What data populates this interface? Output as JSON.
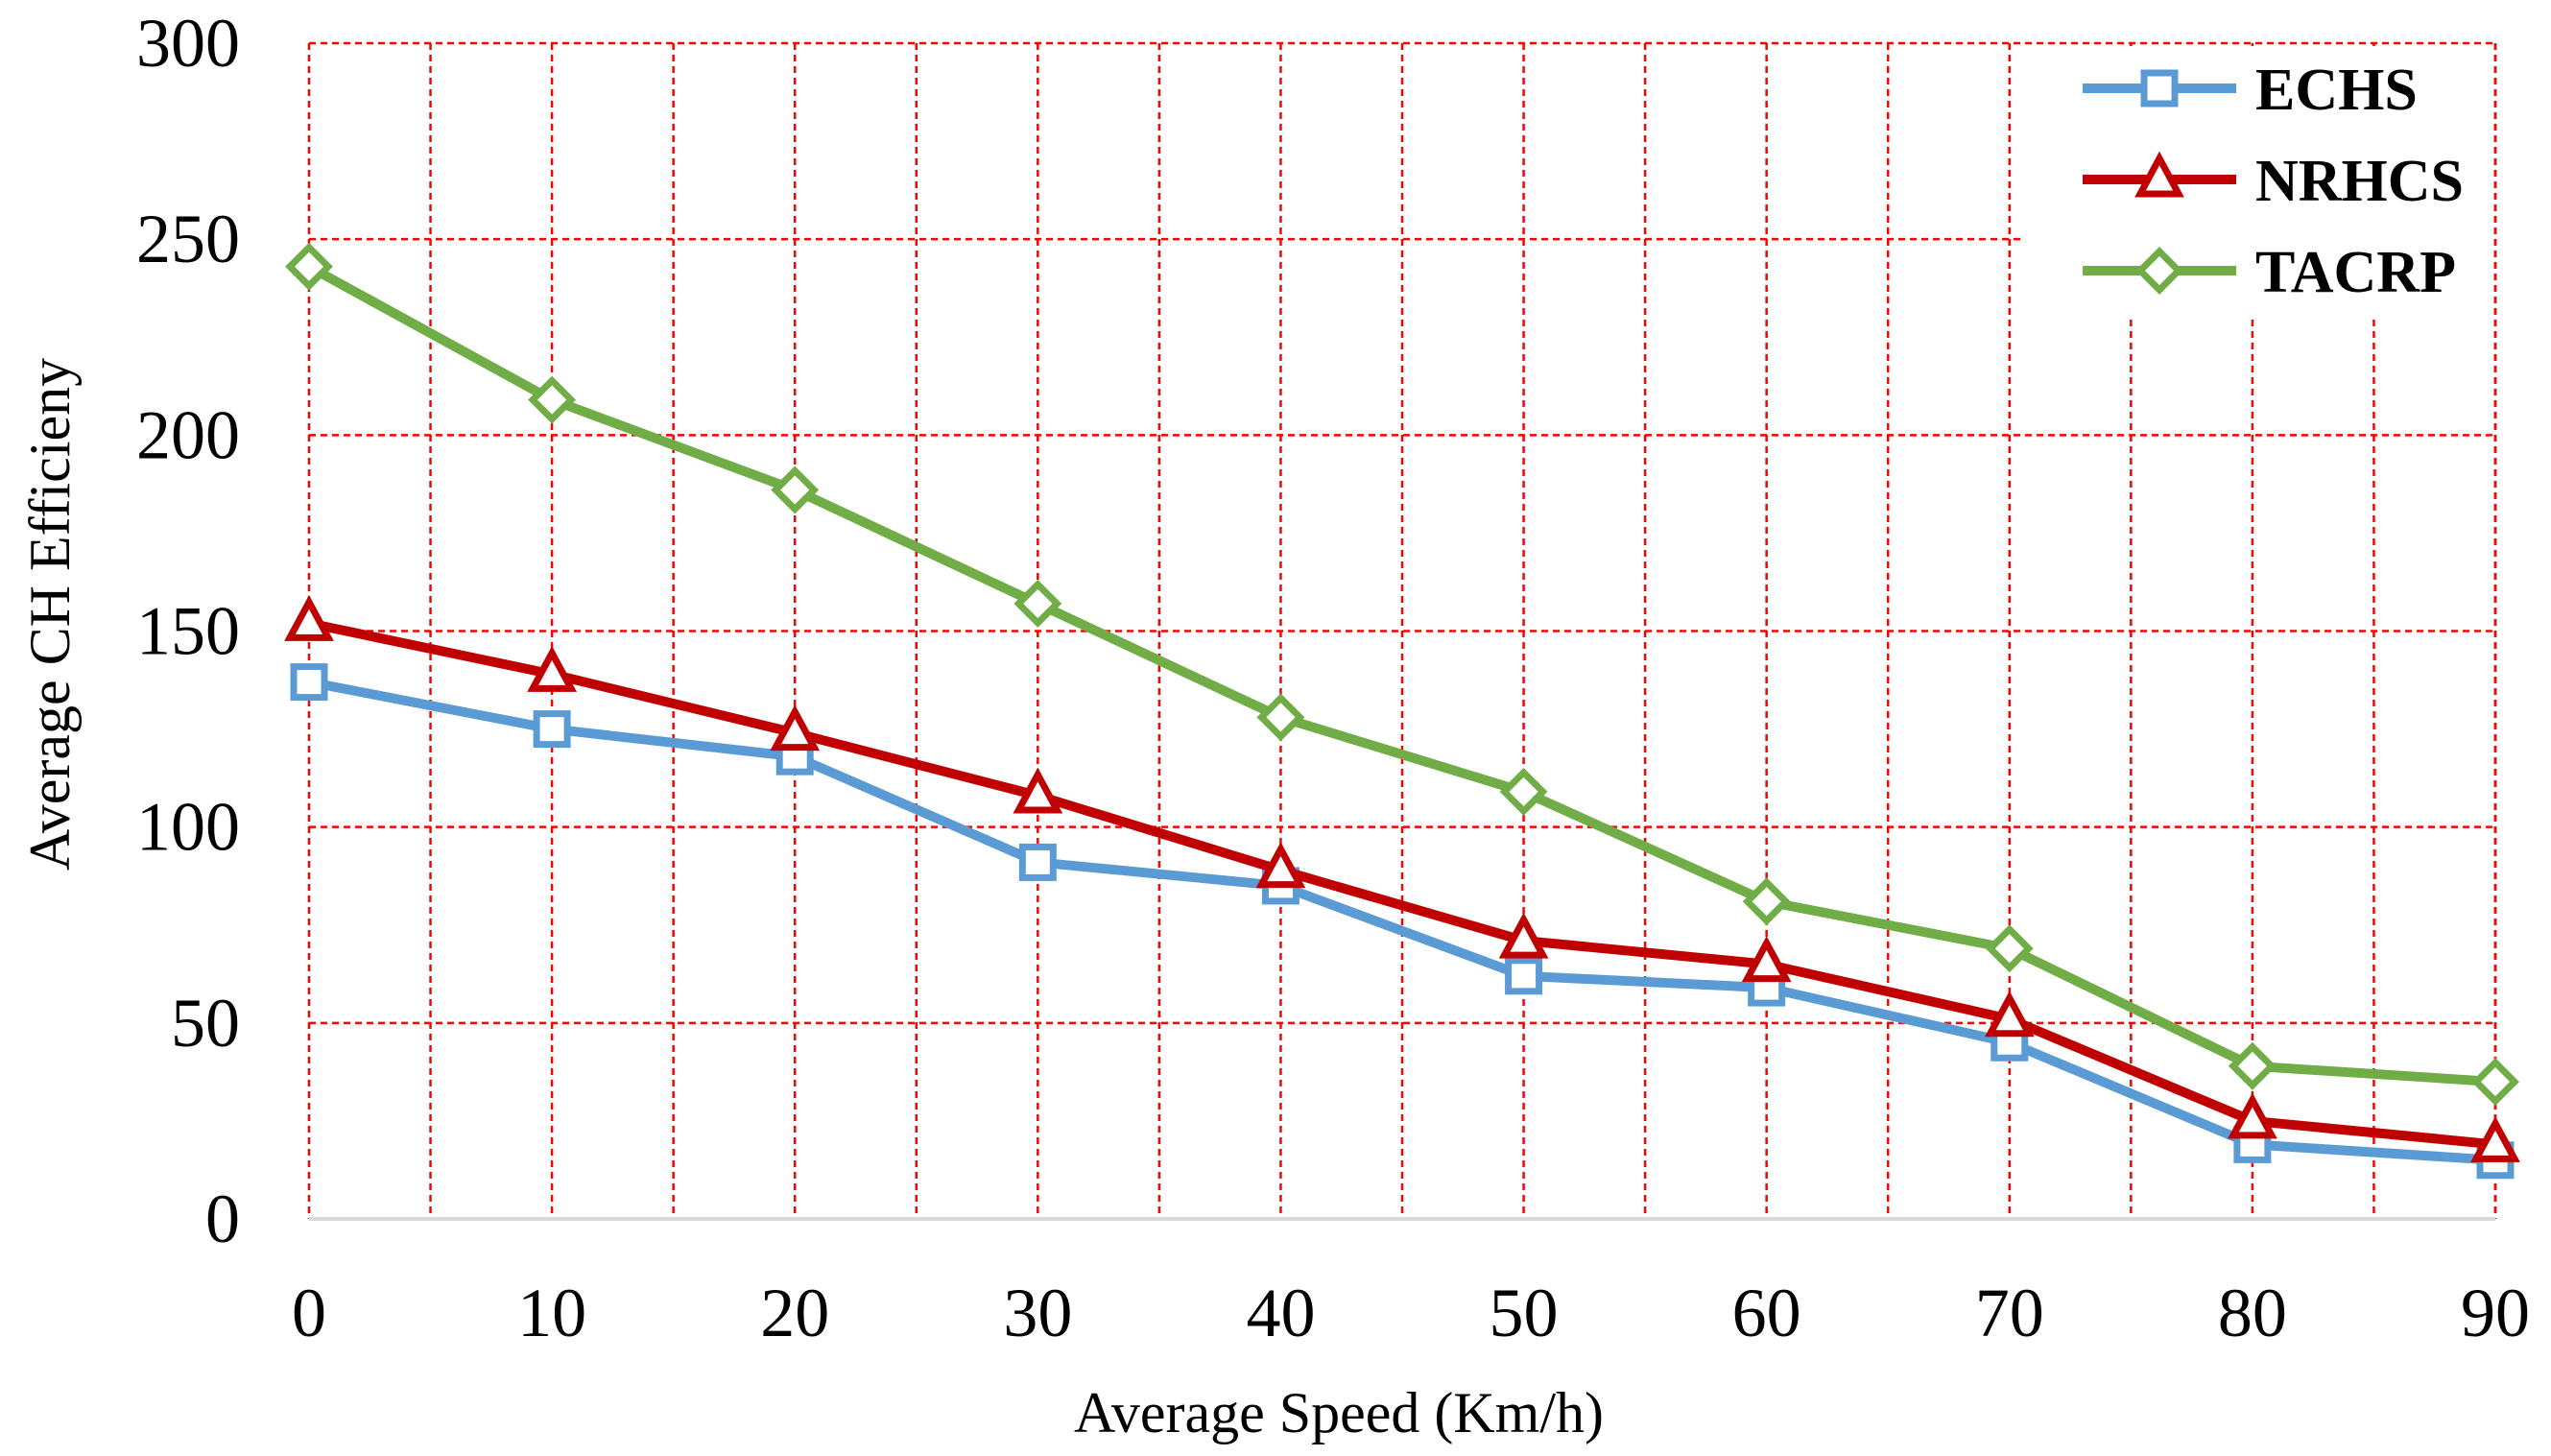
{
  "chart_data": {
    "type": "line",
    "x": [
      0,
      10,
      20,
      30,
      40,
      50,
      60,
      70,
      80,
      90
    ],
    "xlabel": "Average Speed (Km/h)",
    "ylabel": "Average CH Efficieny",
    "xlim": [
      0,
      90
    ],
    "ylim": [
      0,
      300
    ],
    "xticks": [
      "0",
      "10",
      "20",
      "30",
      "40",
      "50",
      "60",
      "70",
      "80",
      "90"
    ],
    "yticks": [
      "0",
      "50",
      "100",
      "150",
      "200",
      "250",
      "300"
    ],
    "grid": true,
    "grid_style": "dashed",
    "grid_color": "#ff0000",
    "legend_position": "top-right",
    "series": [
      {
        "name": "ECHS",
        "color": "#5b9bd5",
        "marker": "square",
        "values": [
          137,
          125,
          118,
          91,
          85,
          62,
          59,
          45,
          19,
          15
        ]
      },
      {
        "name": "NRHCS",
        "color": "#c00000",
        "marker": "triangle",
        "values": [
          152,
          139,
          124,
          108,
          89,
          71,
          65,
          51,
          25,
          19
        ]
      },
      {
        "name": "TACRP",
        "color": "#70ad47",
        "marker": "diamond",
        "values": [
          243,
          209,
          186,
          157,
          128,
          109,
          81,
          69,
          39,
          35
        ]
      }
    ]
  }
}
